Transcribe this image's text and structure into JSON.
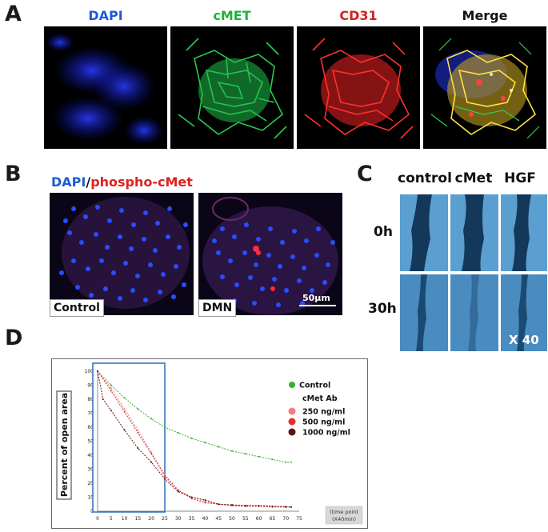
{
  "panel_a": {
    "letter": "A",
    "channels": [
      {
        "label": "DAPI",
        "color": "#1f5bd6"
      },
      {
        "label": "cMET",
        "color": "#1bb33a"
      },
      {
        "label": "CD31",
        "color": "#d62020"
      },
      {
        "label": "Merge",
        "color": "#111111"
      }
    ]
  },
  "panel_b": {
    "letter": "B",
    "title_part1": "DAPI",
    "title_sep": "/",
    "title_part2": "phospho-cMet",
    "images": [
      {
        "label": "Control"
      },
      {
        "label": "DMN"
      }
    ],
    "scale_bar": "50μm"
  },
  "panel_c": {
    "letter": "C",
    "columns": [
      "control",
      "cMet",
      "HGF"
    ],
    "rows": [
      "0h",
      "30h"
    ],
    "magnification": "X 40"
  },
  "panel_d": {
    "letter": "D",
    "chart_data": {
      "type": "line",
      "ylabel": "Percent of open area",
      "xlabel": "(time point (X40min)",
      "xlabel_line1": "(time point",
      "xlabel_line2": "(X40min)",
      "xlim": [
        0,
        75
      ],
      "ylim": [
        0,
        100
      ],
      "xticks": [
        0,
        5,
        10,
        15,
        20,
        25,
        30,
        35,
        40,
        45,
        50,
        55,
        60,
        65,
        70,
        75
      ],
      "yticks": [
        0,
        10,
        20,
        30,
        40,
        50,
        60,
        70,
        80,
        90,
        100
      ],
      "legend_group_title": "cMet Ab",
      "legend_placement": "top-right",
      "highlight_box_x": [
        0,
        25
      ],
      "series": [
        {
          "name": "Control",
          "color": "#3cae32",
          "x": [
            0,
            5,
            10,
            15,
            20,
            25,
            30,
            35,
            40,
            45,
            50,
            55,
            60,
            65,
            70,
            72
          ],
          "y": [
            100,
            90,
            81,
            73,
            66,
            60,
            56,
            52,
            49,
            46,
            43,
            41,
            39,
            37,
            35,
            35
          ]
        },
        {
          "name": "250 ng/ml",
          "color": "#f08080",
          "x": [
            0,
            5,
            10,
            15,
            20,
            25,
            30,
            35,
            40,
            45,
            50,
            55,
            60,
            65,
            70,
            72
          ],
          "y": [
            100,
            88,
            73,
            58,
            42,
            26,
            15,
            10,
            7,
            5,
            4.5,
            4,
            4,
            3.5,
            3.5,
            3
          ]
        },
        {
          "name": "500 ng/ml",
          "color": "#e03030",
          "x": [
            0,
            5,
            10,
            15,
            20,
            25,
            30,
            35,
            40,
            45,
            50,
            55,
            60,
            65,
            70,
            72
          ],
          "y": [
            100,
            86,
            71,
            56,
            41,
            25,
            15,
            9,
            6,
            5,
            4,
            3.5,
            3.5,
            3,
            3,
            3
          ]
        },
        {
          "name": "1000 ng/ml",
          "color": "#5a1515",
          "x": [
            0,
            2,
            5,
            10,
            15,
            20,
            25,
            30,
            35,
            40,
            45,
            50,
            55,
            60,
            65,
            70,
            72
          ],
          "y": [
            100,
            80,
            72,
            58,
            45,
            35,
            23,
            14,
            10,
            8,
            5,
            4.5,
            4,
            4,
            3.5,
            3,
            3
          ]
        }
      ]
    }
  }
}
